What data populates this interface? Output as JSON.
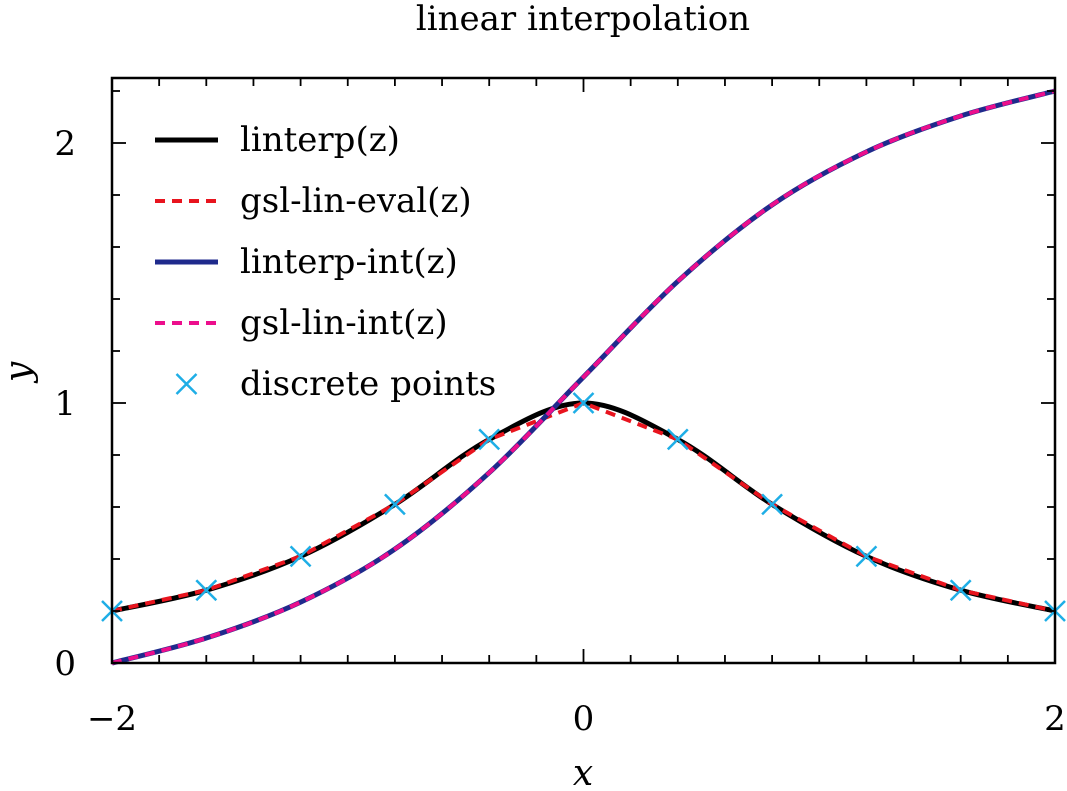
{
  "chart_data": {
    "type": "line",
    "title": "linear interpolation",
    "xlabel": "x",
    "ylabel": "y",
    "xlim": [
      -2,
      2
    ],
    "ylim": [
      0,
      2.25
    ],
    "xticks": [
      -2,
      0,
      2
    ],
    "xtick_labels": [
      "−2",
      "0",
      "2"
    ],
    "yticks": [
      0,
      1,
      2
    ],
    "ytick_labels": [
      "0",
      "1",
      "2"
    ],
    "grid": false,
    "legend_position": "top-left",
    "series": [
      {
        "name": "linterp(z)",
        "style": "solid",
        "color": "#000000",
        "x": [
          -2,
          -1.6,
          -1.2,
          -0.8,
          -0.4,
          0,
          0.4,
          0.8,
          1.2,
          1.6,
          2
        ],
        "y": [
          0.2,
          0.28,
          0.41,
          0.61,
          0.86,
          1.0,
          0.86,
          0.61,
          0.41,
          0.28,
          0.2
        ]
      },
      {
        "name": "gsl-lin-eval(z)",
        "style": "dashed",
        "color": "#e8141e",
        "x": [
          -2,
          -1.6,
          -1.2,
          -0.8,
          -0.4,
          0,
          0.4,
          0.8,
          1.2,
          1.6,
          2
        ],
        "y": [
          0.2,
          0.28,
          0.41,
          0.61,
          0.86,
          1.0,
          0.86,
          0.61,
          0.41,
          0.28,
          0.2
        ]
      },
      {
        "name": "linterp-int(z)",
        "style": "solid",
        "color": "#1f2a8c",
        "x": [
          -2,
          -1.6,
          -1.2,
          -0.8,
          -0.4,
          0,
          0.4,
          0.8,
          1.2,
          1.6,
          2
        ],
        "y": [
          0.0,
          0.096,
          0.234,
          0.438,
          0.732,
          1.1,
          1.468,
          1.762,
          1.966,
          2.104,
          2.2
        ]
      },
      {
        "name": "gsl-lin-int(z)",
        "style": "dashed",
        "color": "#ec0e8c",
        "x": [
          -2,
          -1.6,
          -1.2,
          -0.8,
          -0.4,
          0,
          0.4,
          0.8,
          1.2,
          1.6,
          2
        ],
        "y": [
          0.0,
          0.096,
          0.234,
          0.438,
          0.732,
          1.1,
          1.468,
          1.762,
          1.966,
          2.104,
          2.2
        ]
      },
      {
        "name": "discrete points",
        "style": "markers",
        "marker": "x",
        "color": "#1eaee6",
        "x": [
          -2,
          -1.6,
          -1.2,
          -0.8,
          -0.4,
          0,
          0.4,
          0.8,
          1.2,
          1.6,
          2
        ],
        "y": [
          0.2,
          0.28,
          0.41,
          0.61,
          0.86,
          1.0,
          0.86,
          0.61,
          0.41,
          0.28,
          0.2
        ]
      }
    ]
  }
}
